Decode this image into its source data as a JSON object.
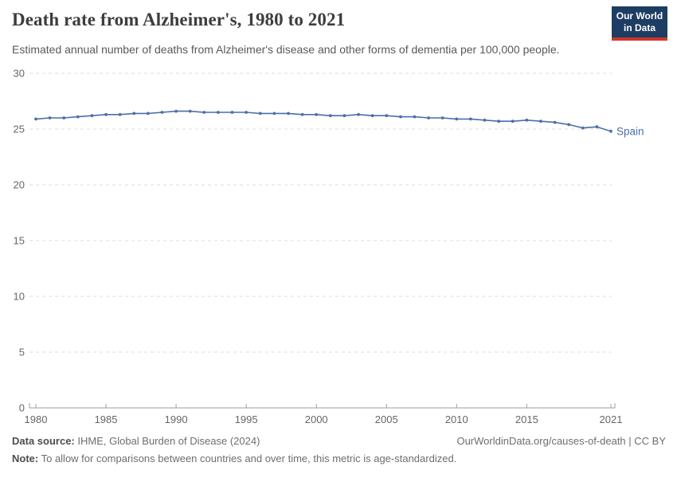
{
  "header": {
    "title": "Death rate from Alzheimer's, 1980 to 2021",
    "subtitle": "Estimated annual number of deaths from Alzheimer's disease and other forms of dementia per 100,000 people."
  },
  "logo": {
    "line1": "Our World",
    "line2": "in Data",
    "bg_color": "#1d3d63",
    "bar_color": "#d0352b"
  },
  "chart_data": {
    "type": "line",
    "title": "Death rate from Alzheimer's, 1980 to 2021",
    "xlabel": "",
    "ylabel": "",
    "ylim": [
      0,
      30
    ],
    "yticks": [
      0,
      5,
      10,
      15,
      20,
      25,
      30
    ],
    "xticks": [
      1980,
      1985,
      1990,
      1995,
      2000,
      2005,
      2010,
      2015,
      2021
    ],
    "grid": "horizontal-dashed",
    "x": [
      1980,
      1981,
      1982,
      1983,
      1984,
      1985,
      1986,
      1987,
      1988,
      1989,
      1990,
      1991,
      1992,
      1993,
      1994,
      1995,
      1996,
      1997,
      1998,
      1999,
      2000,
      2001,
      2002,
      2003,
      2004,
      2005,
      2006,
      2007,
      2008,
      2009,
      2010,
      2011,
      2012,
      2013,
      2014,
      2015,
      2016,
      2017,
      2018,
      2019,
      2020,
      2021
    ],
    "series": [
      {
        "name": "Spain",
        "color": "#4c6ea8",
        "values": [
          25.9,
          26.0,
          26.0,
          26.1,
          26.2,
          26.3,
          26.3,
          26.4,
          26.4,
          26.5,
          26.6,
          26.6,
          26.5,
          26.5,
          26.5,
          26.5,
          26.4,
          26.4,
          26.4,
          26.3,
          26.3,
          26.2,
          26.2,
          26.3,
          26.2,
          26.2,
          26.1,
          26.1,
          26.0,
          26.0,
          25.9,
          25.9,
          25.8,
          25.7,
          25.7,
          25.8,
          25.7,
          25.6,
          25.4,
          25.1,
          25.2,
          24.8
        ]
      }
    ],
    "end_label": "Spain",
    "colors": {
      "grid": "#dcdcdc",
      "axis": "#9d9d9d",
      "tick_text": "#666666"
    }
  },
  "footer": {
    "source_label": "Data source:",
    "source_text": " IHME, Global Burden of Disease (2024)",
    "note_label": "Note:",
    "note_text": " To allow for comparisons between countries and over time, this metric is age-standardized.",
    "link": "OurWorldinData.org/causes-of-death | CC BY"
  }
}
